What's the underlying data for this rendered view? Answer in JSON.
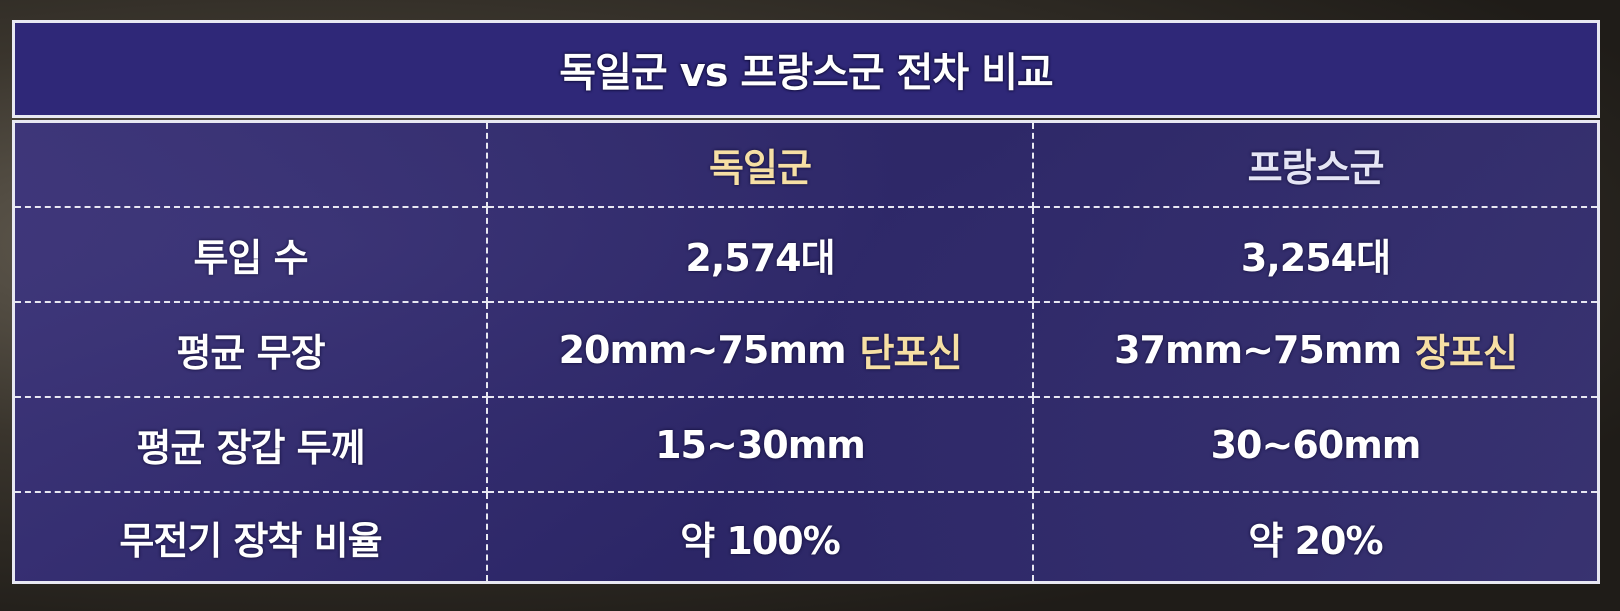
{
  "title": "독일군 vs 프랑스군 전차 비교",
  "columns": [
    "",
    "독일군",
    "프랑스군"
  ],
  "rows": [
    {
      "label": "투입 수",
      "german": "2,574대",
      "french": "3,254대"
    },
    {
      "label": "평균 무장",
      "german": "20mm~75mm",
      "german_note": "단포신",
      "french": "37mm~75mm",
      "french_note": "장포신"
    },
    {
      "label": "평균 장갑 두께",
      "german": "15~30mm",
      "french": "30~60mm"
    },
    {
      "label": "무전기 장착 비율",
      "german": "약 100%",
      "french": "약 20%"
    }
  ],
  "colors": {
    "panel": "#2f2878",
    "highlight": "#f6dfa4",
    "border": "#e8e8f2"
  }
}
